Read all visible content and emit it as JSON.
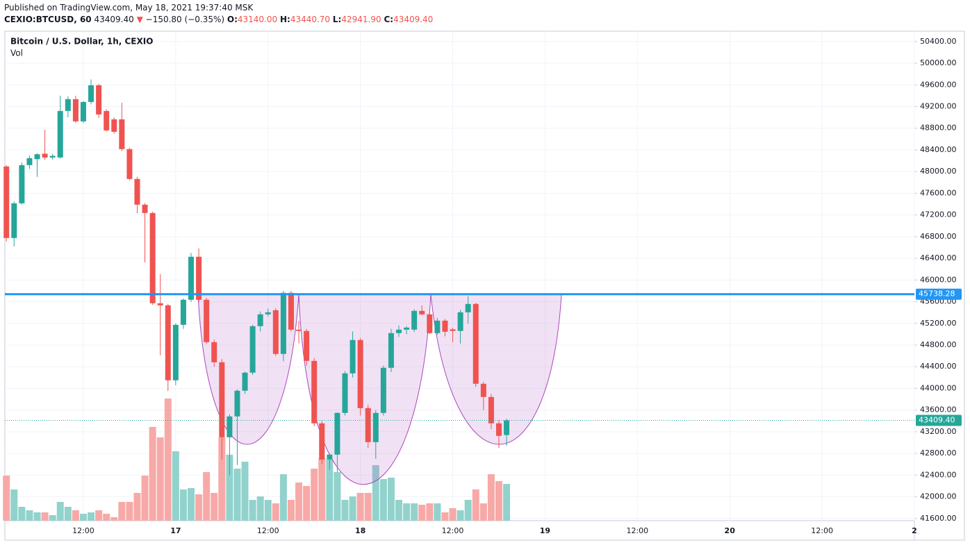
{
  "header": {
    "published": "Published on TradingView.com, May 18, 2021 19:37:40 MSK",
    "symbol": "CEXIO:BTCUSD, 60",
    "last": "43409.40",
    "arrow": "▼",
    "change": "−150.80 (−0.35%)",
    "o_key": "O:",
    "o": "43140.00",
    "h_key": "H:",
    "h": "43440.70",
    "l_key": "L:",
    "l": "42941.90",
    "c_key": "C:",
    "c": "43409.40"
  },
  "chart_data": {
    "type": "candlestick",
    "title": "Bitcoin / U.S. Dollar, 1h, CEXIO",
    "categories": [
      null,
      null,
      null,
      null,
      null,
      null,
      null,
      null,
      null,
      null,
      null,
      null,
      null,
      null,
      null,
      null,
      null,
      null,
      null,
      null,
      null,
      null,
      null,
      null,
      null,
      null,
      null,
      null,
      null,
      null,
      null,
      null,
      null,
      null,
      null,
      null,
      null,
      null,
      null,
      null,
      null,
      null,
      null,
      null,
      null,
      null,
      null,
      null,
      null,
      null,
      null,
      null,
      null,
      null,
      null,
      null,
      null,
      null,
      null,
      null,
      null,
      null,
      null,
      null,
      null,
      null
    ],
    "open": [
      48094,
      46775,
      47415,
      48120,
      48230,
      48330,
      48260,
      48261,
      49119,
      49337,
      48927,
      49285,
      49593,
      49119,
      48965,
      48965,
      48415,
      47864,
      47390,
      47236,
      45571,
      45532,
      44149,
      45173,
      45635,
      46429,
      45635,
      44853,
      44482,
      43098,
      43483,
      43957,
      44290,
      45148,
      45366,
      45442,
      44636,
      45763,
      45084,
      45060,
      44507,
      43355,
      42688,
      42778,
      43547,
      44277,
      44892,
      43636,
      43009,
      43547,
      44380,
      45020,
      45084,
      45084,
      45430,
      45366,
      45020,
      45250,
      45090,
      45060,
      45404,
      45558,
      44085,
      43841,
      43355,
      43140
    ],
    "high": [
      48120,
      47450,
      48170,
      48300,
      48340,
      48773,
      48330,
      49401,
      49390,
      49400,
      49300,
      49700,
      49620,
      49150,
      49000,
      49270,
      48440,
      47900,
      47420,
      47260,
      46109,
      45560,
      45200,
      45660,
      46500,
      46583,
      45670,
      44900,
      44540,
      43520,
      43980,
      44310,
      45170,
      45420,
      45470,
      45480,
      45800,
      45800,
      45250,
      45100,
      44560,
      43400,
      42800,
      43560,
      44320,
      45050,
      44930,
      43700,
      43600,
      44420,
      45100,
      45160,
      45150,
      45460,
      45530,
      45400,
      45300,
      45280,
      45120,
      45450,
      45700,
      45580,
      44120,
      43900,
      43420,
      43440.7
    ],
    "low": [
      46711,
      46621,
      47390,
      48050,
      47902,
      48220,
      48220,
      48240,
      49000,
      48900,
      48900,
      49240,
      48990,
      48740,
      48700,
      48380,
      47840,
      47230,
      46326,
      45540,
      44610,
      43950,
      44059,
      45100,
      45600,
      45580,
      44820,
      44400,
      42688,
      42394,
      42586,
      43900,
      44250,
      45050,
      45330,
      44600,
      44500,
      45050,
      44830,
      44420,
      43300,
      42600,
      42500,
      42458,
      43500,
      44200,
      43500,
      42900,
      42700,
      43500,
      44300,
      44950,
      45000,
      45040,
      45350,
      45000,
      44990,
      44960,
      44850,
      44828,
      45200,
      44030,
      43600,
      43250,
      42900,
      42941.9
    ],
    "close": [
      46775,
      47415,
      48120,
      48248,
      48320,
      48260,
      48290,
      49119,
      49337,
      48927,
      49285,
      49593,
      49055,
      48760,
      48735,
      48415,
      47864,
      47390,
      47236,
      45571,
      45532,
      44149,
      45173,
      45635,
      46429,
      45635,
      44853,
      44482,
      43098,
      43483,
      43957,
      44290,
      45148,
      45366,
      45404,
      44636,
      45763,
      45084,
      45060,
      44507,
      43355,
      42688,
      42778,
      43547,
      44277,
      44892,
      43636,
      43009,
      43547,
      44380,
      45020,
      45084,
      45122,
      45430,
      45366,
      45020,
      45250,
      45045,
      45060,
      45404,
      45558,
      44085,
      43841,
      43355,
      43124,
      43409.4
    ],
    "up_color": "#26a69a",
    "down_color": "#ef5350",
    "vol_up_color": "#92d2cc",
    "vol_down_color": "#f7a9a7",
    "volume": {
      "name": "Vol",
      "ylim": [
        0,
        200
      ],
      "values": [
        65,
        45,
        20,
        15,
        12,
        12,
        8,
        27,
        20,
        15,
        10,
        12,
        15,
        10,
        5,
        27,
        27,
        40,
        65,
        135,
        120,
        176,
        100,
        45,
        47,
        38,
        70,
        40,
        120,
        95,
        75,
        85,
        30,
        35,
        30,
        25,
        67,
        30,
        55,
        50,
        75,
        90,
        88,
        70,
        30,
        35,
        40,
        40,
        80,
        60,
        62,
        30,
        25,
        25,
        23,
        25,
        25,
        12,
        18,
        15,
        30,
        45,
        25,
        67,
        57,
        53
      ]
    },
    "xlim": [
      -0.2,
      118
    ],
    "xticks": [
      {
        "value": 10,
        "label": "12:00"
      },
      {
        "value": 22,
        "label": "17"
      },
      {
        "value": 34,
        "label": "12:00"
      },
      {
        "value": 46,
        "label": "18"
      },
      {
        "value": 58,
        "label": "12:00"
      },
      {
        "value": 70,
        "label": "19"
      },
      {
        "value": 82,
        "label": "12:00"
      },
      {
        "value": 94,
        "label": "20"
      },
      {
        "value": 106,
        "label": "12:00"
      },
      {
        "value": 118,
        "label": "2"
      }
    ],
    "ylim": [
      41200,
      50590
    ],
    "yticks": [
      {
        "value": 41600,
        "label": "41600.00"
      },
      {
        "value": 42000,
        "label": "42000.00"
      },
      {
        "value": 42400,
        "label": "42400.00"
      },
      {
        "value": 42800,
        "label": "42800.00"
      },
      {
        "value": 43200,
        "label": "43200.00"
      },
      {
        "value": 43600,
        "label": "43600.00"
      },
      {
        "value": 44000,
        "label": "44000.00"
      },
      {
        "value": 44400,
        "label": "44400.00"
      },
      {
        "value": 44800,
        "label": "44800.00"
      },
      {
        "value": 45200,
        "label": "45200.00"
      },
      {
        "value": 45600,
        "label": "45600.00"
      },
      {
        "value": 46000,
        "label": "46000.00"
      },
      {
        "value": 46400,
        "label": "46400.00"
      },
      {
        "value": 46800,
        "label": "46800.00"
      },
      {
        "value": 47200,
        "label": "47200.00"
      },
      {
        "value": 47600,
        "label": "47600.00"
      },
      {
        "value": 48000,
        "label": "48000.00"
      },
      {
        "value": 48400,
        "label": "48400.00"
      },
      {
        "value": 48800,
        "label": "48800.00"
      },
      {
        "value": 49200,
        "label": "49200.00"
      },
      {
        "value": 49600,
        "label": "49600.00"
      },
      {
        "value": 50000,
        "label": "50000.00"
      },
      {
        "value": 50400,
        "label": "50400.00"
      }
    ],
    "grid": true,
    "hline": {
      "value": 45738.28,
      "color": "#2196f3"
    },
    "last_price": {
      "value": 43409.4,
      "label": "43409.40",
      "color": "#26a69a"
    }
  }
}
